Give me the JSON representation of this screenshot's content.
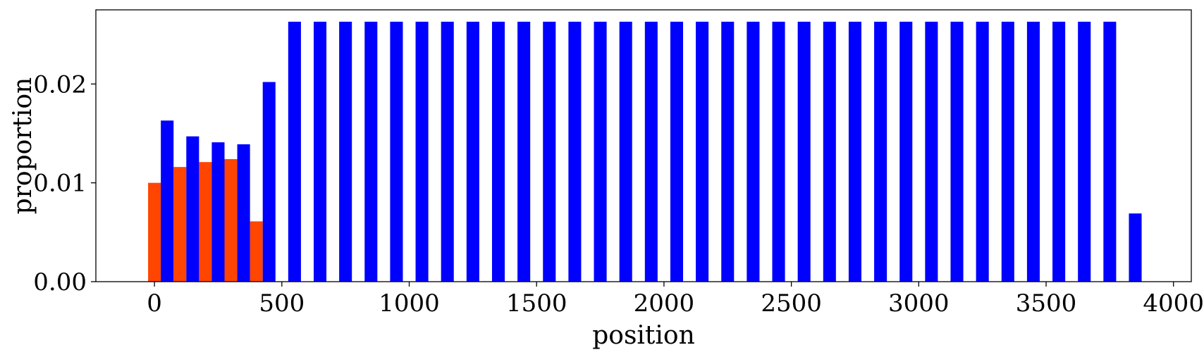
{
  "chart_data": {
    "type": "bar",
    "xlabel": "position",
    "ylabel": "proportion",
    "xlim": [
      -230,
      4070
    ],
    "ylim": [
      0,
      0.0275
    ],
    "x_ticks": [
      0,
      500,
      1000,
      1500,
      2000,
      2500,
      3000,
      3500,
      4000
    ],
    "x_tick_labels": [
      "0",
      "500",
      "1000",
      "1500",
      "2000",
      "2500",
      "3000",
      "3500",
      "4000"
    ],
    "y_ticks": [
      0.0,
      0.01,
      0.02
    ],
    "y_tick_labels": [
      "0.00",
      "0.01",
      "0.02"
    ],
    "bar_width": 50,
    "grid": false,
    "legend": "none",
    "series": [
      {
        "color": "#ff4500",
        "x": [
          0,
          100,
          200,
          300,
          400
        ],
        "values": [
          0.01,
          0.0116,
          0.0121,
          0.0124,
          0.0061
        ]
      },
      {
        "color": "#0000ff",
        "x": [
          50,
          150,
          250,
          350,
          450,
          550,
          650,
          750,
          850,
          950,
          1050,
          1150,
          1250,
          1350,
          1450,
          1550,
          1650,
          1750,
          1850,
          1950,
          2050,
          2150,
          2250,
          2350,
          2450,
          2550,
          2650,
          2750,
          2850,
          2950,
          3050,
          3150,
          3250,
          3350,
          3450,
          3550,
          3650,
          3750,
          3850
        ],
        "values": [
          0.0163,
          0.0147,
          0.0141,
          0.0139,
          0.0202,
          0.0263,
          0.0263,
          0.0263,
          0.0263,
          0.0263,
          0.0263,
          0.0263,
          0.0263,
          0.0263,
          0.0263,
          0.0263,
          0.0263,
          0.0263,
          0.0263,
          0.0263,
          0.0263,
          0.0263,
          0.0263,
          0.0263,
          0.0263,
          0.0263,
          0.0263,
          0.0263,
          0.0263,
          0.0263,
          0.0263,
          0.0263,
          0.0263,
          0.0263,
          0.0263,
          0.0263,
          0.0263,
          0.0263,
          0.0069
        ]
      }
    ]
  }
}
